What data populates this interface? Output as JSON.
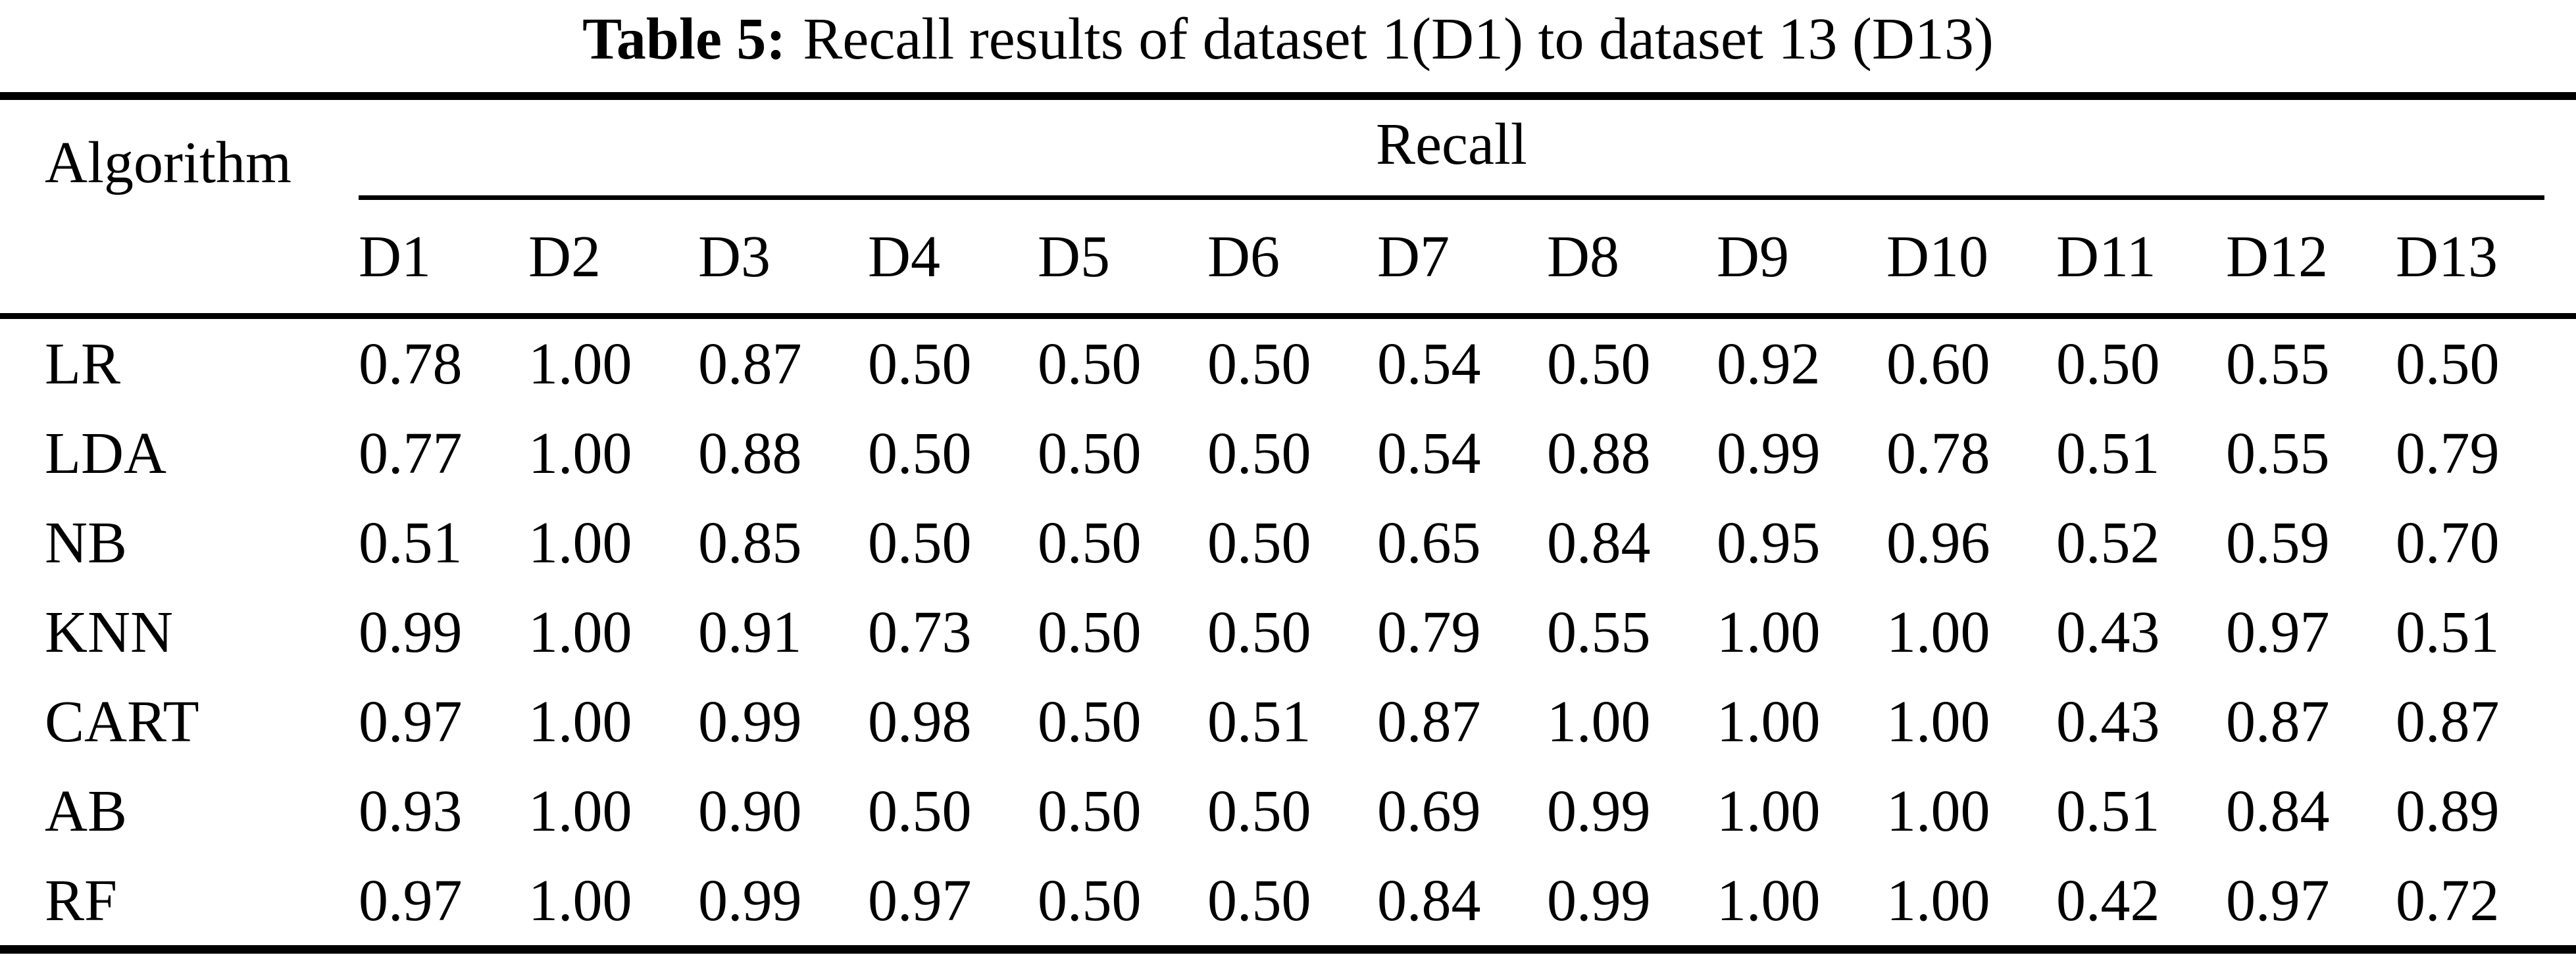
{
  "caption": {
    "label": "Table 5:",
    "text": "Recall results of dataset 1(D1) to dataset 13 (D13)"
  },
  "table": {
    "corner_header": "Algorithm",
    "group_header": "Recall",
    "columns": [
      "D1",
      "D2",
      "D3",
      "D4",
      "D5",
      "D6",
      "D7",
      "D8",
      "D9",
      "D10",
      "D11",
      "D12",
      "D13"
    ],
    "rows": [
      {
        "algorithm": "LR",
        "values": [
          "0.78",
          "1.00",
          "0.87",
          "0.50",
          "0.50",
          "0.50",
          "0.54",
          "0.50",
          "0.92",
          "0.60",
          "0.50",
          "0.55",
          "0.50"
        ]
      },
      {
        "algorithm": "LDA",
        "values": [
          "0.77",
          "1.00",
          "0.88",
          "0.50",
          "0.50",
          "0.50",
          "0.54",
          "0.88",
          "0.99",
          "0.78",
          "0.51",
          "0.55",
          "0.79"
        ]
      },
      {
        "algorithm": "NB",
        "values": [
          "0.51",
          "1.00",
          "0.85",
          "0.50",
          "0.50",
          "0.50",
          "0.65",
          "0.84",
          "0.95",
          "0.96",
          "0.52",
          "0.59",
          "0.70"
        ]
      },
      {
        "algorithm": "KNN",
        "values": [
          "0.99",
          "1.00",
          "0.91",
          "0.73",
          "0.50",
          "0.50",
          "0.79",
          "0.55",
          "1.00",
          "1.00",
          "0.43",
          "0.97",
          "0.51"
        ]
      },
      {
        "algorithm": "CART",
        "values": [
          "0.97",
          "1.00",
          "0.99",
          "0.98",
          "0.50",
          "0.51",
          "0.87",
          "1.00",
          "1.00",
          "1.00",
          "0.43",
          "0.87",
          "0.87"
        ]
      },
      {
        "algorithm": "AB",
        "values": [
          "0.93",
          "1.00",
          "0.90",
          "0.50",
          "0.50",
          "0.50",
          "0.69",
          "0.99",
          "1.00",
          "1.00",
          "0.51",
          "0.84",
          "0.89"
        ]
      },
      {
        "algorithm": "RF",
        "values": [
          "0.97",
          "1.00",
          "0.99",
          "0.97",
          "0.50",
          "0.50",
          "0.84",
          "0.99",
          "1.00",
          "1.00",
          "0.42",
          "0.97",
          "0.72"
        ]
      }
    ]
  },
  "colors": {
    "text": "#000000",
    "background": "#ffffff",
    "rule": "#000000"
  }
}
